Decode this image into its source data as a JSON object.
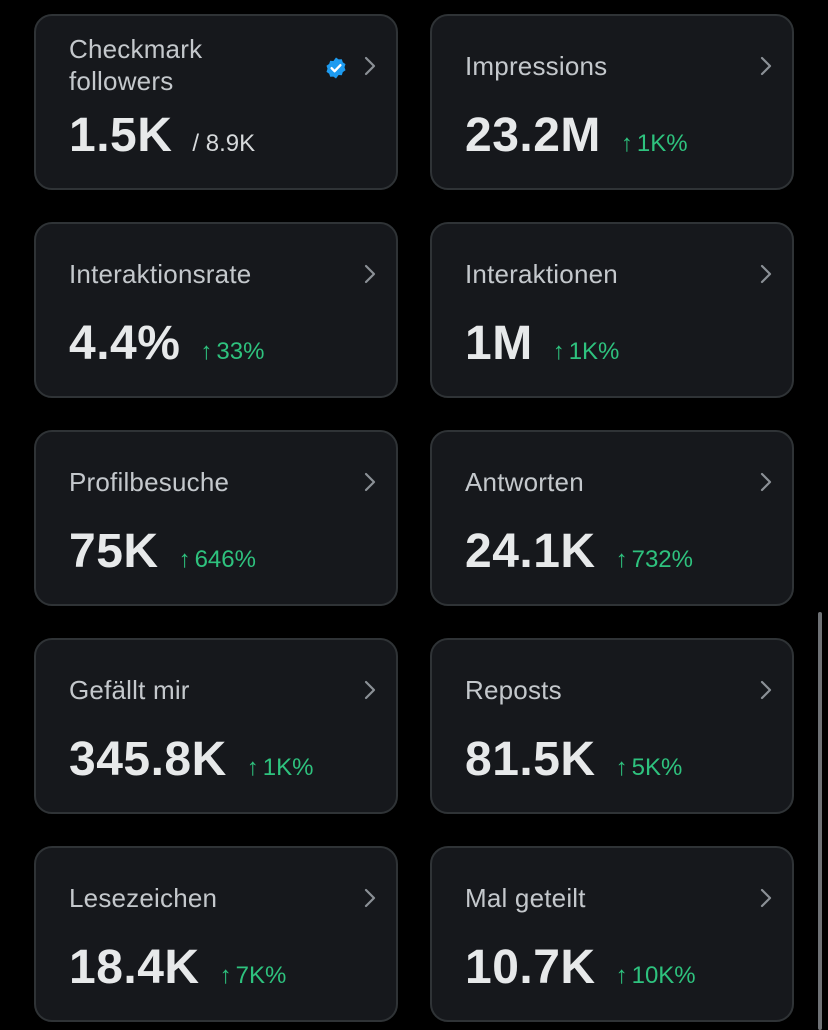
{
  "colors": {
    "background": "#000000",
    "card_background": "#16181c",
    "card_border": "#2f3336",
    "label": "#c4c8cc",
    "value": "#e7e9ea",
    "delta_positive": "#2ec27e",
    "verified_badge": "#1d9bf0"
  },
  "cards": [
    {
      "label": "Checkmark followers",
      "value": "1.5K",
      "secondary": "/ 8.9K",
      "badge_icon": "verified-badge-icon",
      "chevron_icon": "chevron-right-icon"
    },
    {
      "label": "Impressions",
      "value": "23.2M",
      "delta_arrow": "↑",
      "delta": "1K%",
      "chevron_icon": "chevron-right-icon"
    },
    {
      "label": "Interaktionsrate",
      "value": "4.4%",
      "delta_arrow": "↑",
      "delta": "33%",
      "chevron_icon": "chevron-right-icon"
    },
    {
      "label": "Interaktionen",
      "value": "1M",
      "delta_arrow": "↑",
      "delta": "1K%",
      "chevron_icon": "chevron-right-icon"
    },
    {
      "label": "Profilbesuche",
      "value": "75K",
      "delta_arrow": "↑",
      "delta": "646%",
      "chevron_icon": "chevron-right-icon"
    },
    {
      "label": "Antworten",
      "value": "24.1K",
      "delta_arrow": "↑",
      "delta": "732%",
      "chevron_icon": "chevron-right-icon"
    },
    {
      "label": "Gefällt mir",
      "value": "345.8K",
      "delta_arrow": "↑",
      "delta": "1K%",
      "chevron_icon": "chevron-right-icon"
    },
    {
      "label": "Reposts",
      "value": "81.5K",
      "delta_arrow": "↑",
      "delta": "5K%",
      "chevron_icon": "chevron-right-icon"
    },
    {
      "label": "Lesezeichen",
      "value": "18.4K",
      "delta_arrow": "↑",
      "delta": "7K%",
      "chevron_icon": "chevron-right-icon"
    },
    {
      "label": "Mal geteilt",
      "value": "10.7K",
      "delta_arrow": "↑",
      "delta": "10K%",
      "chevron_icon": "chevron-right-icon"
    }
  ]
}
